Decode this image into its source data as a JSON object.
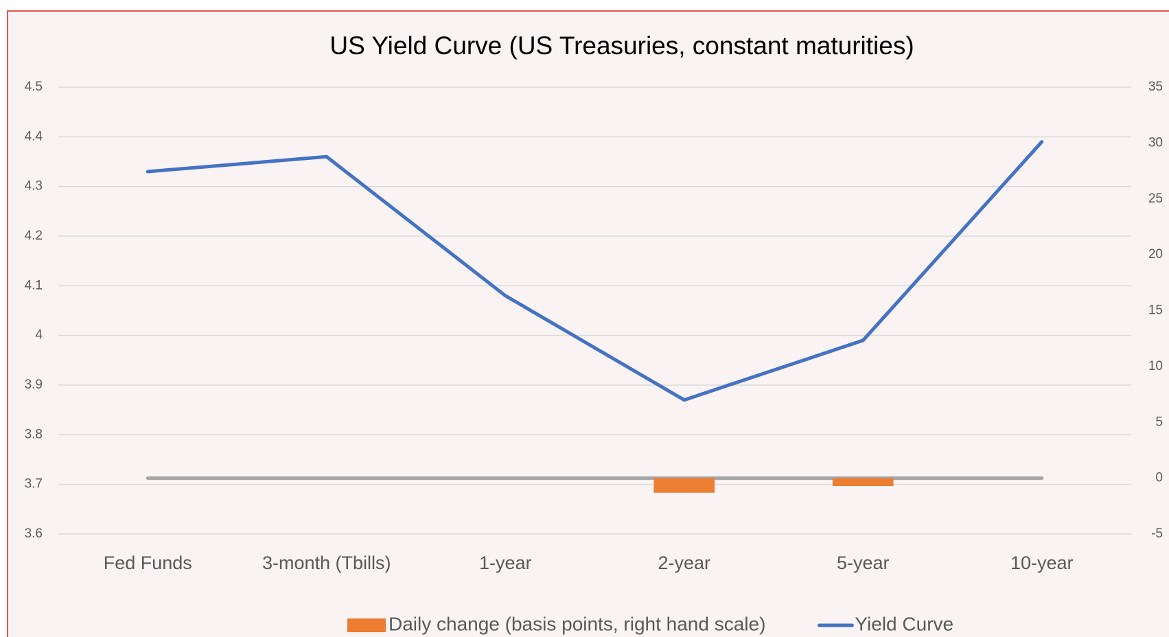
{
  "chart_data": {
    "type": "combo",
    "title": "US Yield Curve (US Treasuries, constant maturities)",
    "categories": [
      "Fed Funds",
      "3-month (Tbills)",
      "1-year",
      "2-year",
      "5-year",
      "10-year"
    ],
    "series": [
      {
        "name": "Daily change (basis points, right hand scale)",
        "type": "bar",
        "axis": "y2",
        "color": "#ed7d31",
        "values": [
          0,
          0,
          0,
          -1.3,
          -0.7,
          0
        ]
      },
      {
        "name": "Yield Curve",
        "type": "line",
        "color": "#4472c4",
        "values": [
          4.33,
          4.36,
          4.08,
          3.87,
          3.99,
          4.39
        ]
      }
    ],
    "ylim": [
      3.6,
      4.5
    ],
    "yticks": [
      3.6,
      3.7,
      3.8,
      3.9,
      4,
      4.1,
      4.2,
      4.3,
      4.4,
      4.5
    ],
    "y2lim": [
      -5,
      35
    ],
    "y2ticks": [
      -5,
      0,
      5,
      10,
      15,
      20,
      25,
      30,
      35
    ],
    "grid": true,
    "legend": "bottom"
  }
}
